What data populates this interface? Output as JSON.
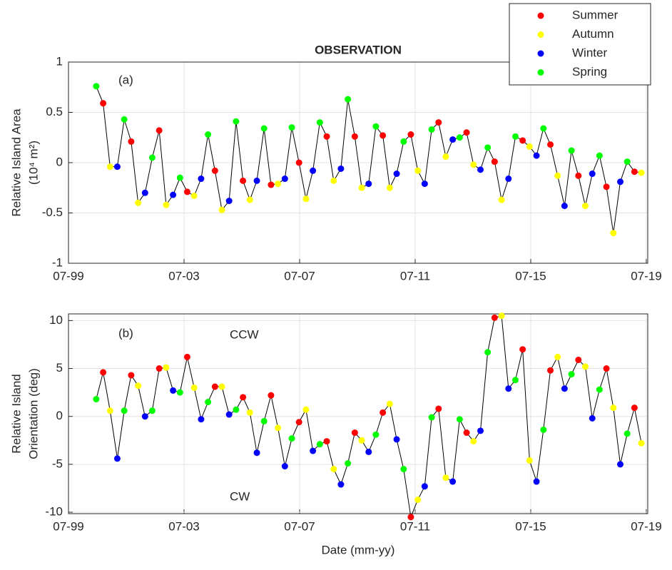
{
  "chart_data": [
    {
      "type": "line",
      "title": "OBSERVATION",
      "ylabel": [
        "Relative Island Area",
        "(10⁴ m²)"
      ],
      "annotations": [
        "(a)"
      ],
      "x": [
        2000.46,
        2000.7,
        2000.94,
        2001.19,
        2001.43,
        2001.67,
        2001.91,
        2002.15,
        2002.4,
        2002.64,
        2002.88,
        2003.12,
        2003.36,
        2003.61,
        2003.85,
        2004.09,
        2004.33,
        2004.57,
        2004.81,
        2005.06,
        2005.3,
        2005.54,
        2005.78,
        2006.02,
        2006.27,
        2006.51,
        2006.75,
        2006.99,
        2007.23,
        2007.48,
        2007.72,
        2007.96,
        2008.2,
        2008.44,
        2008.68,
        2008.93,
        2009.17,
        2009.41,
        2009.65,
        2009.89,
        2010.14,
        2010.38,
        2010.62,
        2010.86,
        2011.1,
        2011.35,
        2011.59,
        2011.83,
        2012.07,
        2012.31,
        2012.56,
        2012.8,
        2013.04,
        2013.28,
        2013.52,
        2013.76,
        2014.01,
        2014.25,
        2014.49,
        2014.73,
        2014.97,
        2015.22,
        2015.46,
        2015.7,
        2015.94,
        2016.18,
        2016.43,
        2016.67,
        2016.91,
        2017.15,
        2017.39,
        2017.63,
        2017.88,
        2018.12,
        2018.36,
        2018.6,
        2018.84,
        2019.09,
        2019.33
      ],
      "values": [
        0.76,
        0.59,
        -0.04,
        -0.04,
        0.43,
        0.21,
        -0.4,
        -0.3,
        0.05,
        0.32,
        -0.42,
        -0.32,
        -0.15,
        -0.29,
        -0.33,
        -0.16,
        0.28,
        -0.08,
        -0.47,
        -0.38,
        0.41,
        -0.18,
        -0.37,
        -0.18,
        0.34,
        -0.22,
        -0.21,
        -0.16,
        0.35,
        0.0,
        -0.36,
        -0.08,
        0.4,
        0.26,
        -0.18,
        -0.06,
        0.63,
        0.26,
        -0.25,
        -0.21,
        0.36,
        0.27,
        -0.25,
        -0.11,
        0.21,
        0.28,
        -0.08,
        -0.21,
        0.33,
        0.4,
        0.06,
        0.23,
        0.25,
        0.3,
        -0.02,
        -0.07,
        0.15,
        0.01,
        -0.37,
        -0.16,
        0.26,
        0.22,
        0.16,
        0.07,
        0.34,
        0.18,
        -0.13,
        -0.43,
        0.12,
        -0.13,
        -0.43,
        -0.11,
        0.07,
        -0.24,
        -0.7,
        -0.19,
        0.01,
        -0.09,
        -0.1
      ],
      "line_color": "#000000",
      "marker_colors": [
        "#00ff00",
        "#ff0000",
        "#ffff00",
        "#0000ff",
        "#00ff00",
        "#ff0000",
        "#ffff00",
        "#0000ff",
        "#00ff00",
        "#ff0000",
        "#ffff00",
        "#0000ff",
        "#00ff00",
        "#ff0000",
        "#ffff00",
        "#0000ff",
        "#00ff00",
        "#ff0000",
        "#ffff00",
        "#0000ff",
        "#00ff00",
        "#ff0000",
        "#ffff00",
        "#0000ff",
        "#00ff00",
        "#ff0000",
        "#ffff00",
        "#0000ff",
        "#00ff00",
        "#ff0000",
        "#ffff00",
        "#0000ff",
        "#00ff00",
        "#ff0000",
        "#ffff00",
        "#0000ff",
        "#00ff00",
        "#ff0000",
        "#ffff00",
        "#0000ff",
        "#00ff00",
        "#ff0000",
        "#ffff00",
        "#0000ff",
        "#00ff00",
        "#ff0000",
        "#ffff00",
        "#0000ff",
        "#00ff00",
        "#ff0000",
        "#ffff00",
        "#0000ff",
        "#00ff00",
        "#ff0000",
        "#ffff00",
        "#0000ff",
        "#00ff00",
        "#ff0000",
        "#ffff00",
        "#0000ff",
        "#00ff00",
        "#ff0000",
        "#ffff00",
        "#0000ff",
        "#00ff00",
        "#ff0000",
        "#ffff00",
        "#0000ff",
        "#00ff00",
        "#ff0000",
        "#ffff00",
        "#0000ff",
        "#00ff00",
        "#ff0000",
        "#ffff00",
        "#0000ff",
        "#00ff00",
        "#ff0000",
        "#ffff00"
      ],
      "legend": [
        {
          "name": "Summer",
          "color": "#ff0000"
        },
        {
          "name": "Autumn",
          "color": "#ffff00"
        },
        {
          "name": "Winter",
          "color": "#0000ff"
        },
        {
          "name": "Spring",
          "color": "#00ff00"
        }
      ],
      "xlim": [
        1999.5,
        2019.55
      ],
      "xticks": [
        {
          "value": 1999.5,
          "label": "07-99"
        },
        {
          "value": 2003.5,
          "label": "07-03"
        },
        {
          "value": 2007.5,
          "label": "07-07"
        },
        {
          "value": 2011.5,
          "label": "07-11"
        },
        {
          "value": 2015.5,
          "label": "07-15"
        },
        {
          "value": 2019.5,
          "label": "07-19"
        }
      ],
      "ylim": [
        -1,
        1
      ],
      "yticks": [
        -1,
        -0.5,
        0,
        0.5,
        1
      ],
      "grid": true
    },
    {
      "type": "line",
      "xlabel": "Date (mm-yy)",
      "ylabel": [
        "Relative Island",
        "Orientation (deg)"
      ],
      "annotations": [
        "(b)",
        "CCW",
        "CW"
      ],
      "x": [
        2000.46,
        2000.7,
        2000.94,
        2001.19,
        2001.43,
        2001.67,
        2001.91,
        2002.15,
        2002.4,
        2002.64,
        2002.88,
        2003.12,
        2003.36,
        2003.61,
        2003.85,
        2004.09,
        2004.33,
        2004.57,
        2004.81,
        2005.06,
        2005.3,
        2005.54,
        2005.78,
        2006.02,
        2006.27,
        2006.51,
        2006.75,
        2006.99,
        2007.23,
        2007.48,
        2007.72,
        2007.96,
        2008.2,
        2008.44,
        2008.68,
        2008.93,
        2009.17,
        2009.41,
        2009.65,
        2009.89,
        2010.14,
        2010.38,
        2010.62,
        2010.86,
        2011.1,
        2011.35,
        2011.59,
        2011.83,
        2012.07,
        2012.31,
        2012.56,
        2012.8,
        2013.04,
        2013.28,
        2013.52,
        2013.76,
        2014.01,
        2014.25,
        2014.49,
        2014.73,
        2014.97,
        2015.22,
        2015.46,
        2015.7,
        2015.94,
        2016.18,
        2016.43,
        2016.67,
        2016.91,
        2017.15,
        2017.39,
        2017.63,
        2017.88,
        2018.12,
        2018.36,
        2018.6,
        2018.84,
        2019.09,
        2019.33
      ],
      "values": [
        1.8,
        4.6,
        0.6,
        -4.4,
        0.6,
        4.3,
        3.2,
        0.0,
        0.6,
        5.0,
        5.1,
        2.7,
        2.5,
        6.2,
        3.0,
        -0.3,
        1.5,
        3.1,
        3.1,
        0.2,
        0.7,
        2.0,
        0.4,
        -3.8,
        -0.5,
        2.2,
        -1.2,
        -5.2,
        -2.3,
        -0.6,
        0.7,
        -3.6,
        -2.9,
        -2.6,
        -5.5,
        -7.1,
        -4.9,
        -1.7,
        -2.5,
        -3.7,
        -1.9,
        0.4,
        1.3,
        -2.4,
        -5.5,
        -10.5,
        -8.7,
        -7.3,
        -0.1,
        0.8,
        -6.4,
        -6.8,
        -0.3,
        -1.7,
        -2.6,
        -1.5,
        6.7,
        10.3,
        10.5,
        2.9,
        3.8,
        7.0,
        -4.6,
        -6.8,
        -1.4,
        4.8,
        6.2,
        2.9,
        4.4,
        5.9,
        5.2,
        -0.2,
        2.8,
        5.0,
        0.9,
        -5.0,
        -1.8,
        0.9,
        -2.8
      ],
      "line_color": "#000000",
      "marker_colors": [
        "#00ff00",
        "#ff0000",
        "#ffff00",
        "#0000ff",
        "#00ff00",
        "#ff0000",
        "#ffff00",
        "#0000ff",
        "#00ff00",
        "#ff0000",
        "#ffff00",
        "#0000ff",
        "#00ff00",
        "#ff0000",
        "#ffff00",
        "#0000ff",
        "#00ff00",
        "#ff0000",
        "#ffff00",
        "#0000ff",
        "#00ff00",
        "#ff0000",
        "#ffff00",
        "#0000ff",
        "#00ff00",
        "#ff0000",
        "#ffff00",
        "#0000ff",
        "#00ff00",
        "#ff0000",
        "#ffff00",
        "#0000ff",
        "#00ff00",
        "#ff0000",
        "#ffff00",
        "#0000ff",
        "#00ff00",
        "#ff0000",
        "#ffff00",
        "#0000ff",
        "#00ff00",
        "#ff0000",
        "#ffff00",
        "#0000ff",
        "#00ff00",
        "#ff0000",
        "#ffff00",
        "#0000ff",
        "#00ff00",
        "#ff0000",
        "#ffff00",
        "#0000ff",
        "#00ff00",
        "#ff0000",
        "#ffff00",
        "#0000ff",
        "#00ff00",
        "#ff0000",
        "#ffff00",
        "#0000ff",
        "#00ff00",
        "#ff0000",
        "#ffff00",
        "#0000ff",
        "#00ff00",
        "#ff0000",
        "#ffff00",
        "#0000ff",
        "#00ff00",
        "#ff0000",
        "#ffff00",
        "#0000ff",
        "#00ff00",
        "#ff0000",
        "#ffff00",
        "#0000ff",
        "#00ff00",
        "#ff0000",
        "#ffff00"
      ],
      "xlim": [
        1999.5,
        2019.55
      ],
      "xticks": [
        {
          "value": 1999.5,
          "label": "07-99"
        },
        {
          "value": 2003.5,
          "label": "07-03"
        },
        {
          "value": 2007.5,
          "label": "07-07"
        },
        {
          "value": 2011.5,
          "label": "07-11"
        },
        {
          "value": 2015.5,
          "label": "07-15"
        },
        {
          "value": 2019.5,
          "label": "07-19"
        }
      ],
      "ylim": [
        -10.15,
        10.7
      ],
      "yticks": [
        -10,
        -5,
        0,
        5,
        10
      ],
      "grid": true
    }
  ]
}
